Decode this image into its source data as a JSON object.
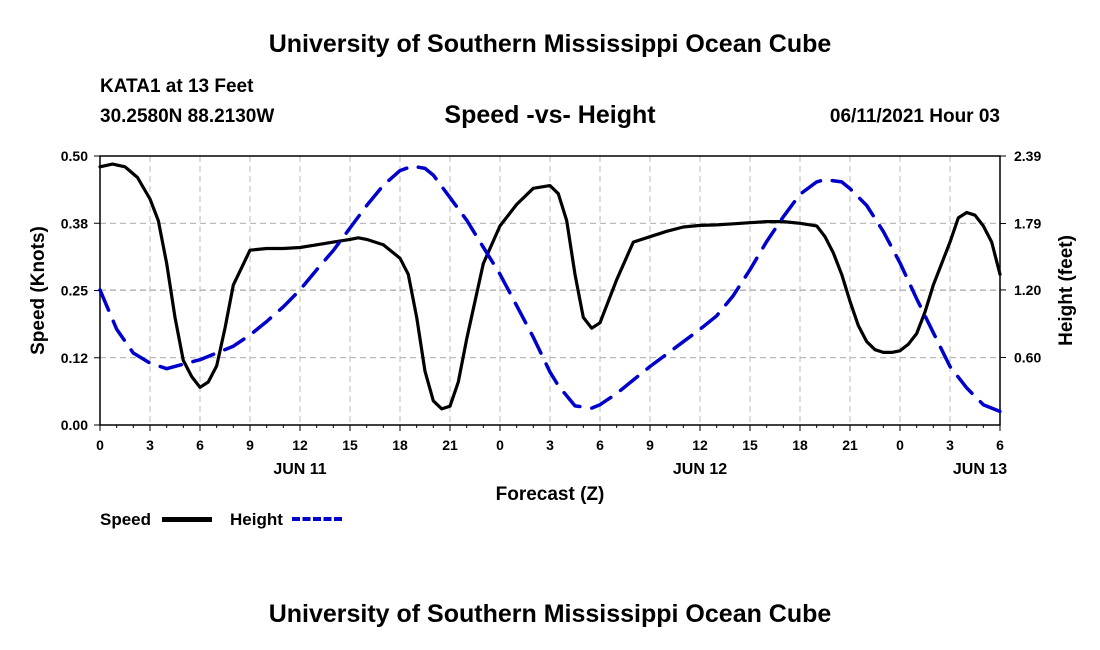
{
  "header": {
    "title": "University of Southern Mississippi Ocean Cube",
    "station": "KATA1 at 13 Feet",
    "coords": "30.2580N  88.2130W",
    "subtitle": "Speed -vs- Height",
    "datetime": "06/11/2021 Hour 03"
  },
  "footer": {
    "title": "University of Southern Mississippi Ocean Cube"
  },
  "legend": {
    "speed_label": "Speed",
    "height_label": "Height"
  },
  "colors": {
    "speed": "#000000",
    "height": "#0000cc",
    "grid": "#bbbbbb"
  },
  "chart_data": {
    "type": "line",
    "title": "Speed -vs- Height",
    "xlabel": "Forecast (Z)",
    "ylabel": "Speed (Knots)",
    "y2label": "Height (feet)",
    "xlim": [
      0,
      54
    ],
    "ylim": [
      0,
      0.5
    ],
    "y2lim": [
      0,
      2.39
    ],
    "x_ticks": [
      0,
      3,
      6,
      9,
      12,
      15,
      18,
      21,
      24,
      27,
      30,
      33,
      36,
      39,
      42,
      45,
      48,
      51,
      54
    ],
    "x_tick_labels": [
      "0",
      "3",
      "6",
      "9",
      "12",
      "15",
      "18",
      "21",
      "0",
      "3",
      "6",
      "9",
      "12",
      "15",
      "18",
      "21",
      "0",
      "3",
      "6"
    ],
    "y_ticks": [
      0,
      0.125,
      0.25,
      0.375,
      0.5
    ],
    "y_tick_labels": [
      "0.00",
      "0.12",
      "0.25",
      "0.38",
      "0.50"
    ],
    "y2_ticks": [
      0.6,
      1.2,
      1.79,
      2.39
    ],
    "y2_tick_labels": [
      "0.60",
      "1.20",
      "1.79",
      "2.39"
    ],
    "day_labels": [
      {
        "x": 12,
        "label": "JUN 11"
      },
      {
        "x": 36,
        "label": "JUN 12"
      },
      {
        "x": 52.8,
        "label": "JUN 13"
      }
    ],
    "series": [
      {
        "name": "Speed",
        "axis": "left",
        "style": "solid",
        "x": [
          0,
          0.75,
          1.5,
          2.25,
          3,
          3.5,
          4,
          4.5,
          5,
          5.5,
          6,
          6.5,
          7,
          7.5,
          8,
          9,
          10,
          11,
          12,
          13,
          14,
          15,
          15.5,
          16,
          17,
          18,
          18.5,
          19,
          19.5,
          20,
          20.5,
          21,
          21.5,
          22,
          23,
          24,
          25,
          26,
          27,
          27.5,
          28,
          28.5,
          29,
          29.5,
          30,
          30.5,
          31,
          32,
          33,
          34,
          35,
          36,
          37,
          38,
          39,
          40,
          41,
          42,
          43,
          43.5,
          44,
          44.5,
          45,
          45.5,
          46,
          46.5,
          47,
          47.5,
          48,
          48.5,
          49,
          49.5,
          50,
          51,
          51.5,
          52,
          52.5,
          53,
          53.5,
          54
        ],
        "values": [
          0.48,
          0.485,
          0.48,
          0.46,
          0.42,
          0.38,
          0.3,
          0.2,
          0.12,
          0.09,
          0.07,
          0.08,
          0.11,
          0.18,
          0.26,
          0.325,
          0.328,
          0.328,
          0.33,
          0.335,
          0.34,
          0.345,
          0.348,
          0.345,
          0.335,
          0.31,
          0.28,
          0.2,
          0.1,
          0.045,
          0.03,
          0.035,
          0.08,
          0.16,
          0.3,
          0.37,
          0.41,
          0.44,
          0.445,
          0.43,
          0.38,
          0.28,
          0.2,
          0.18,
          0.19,
          0.23,
          0.27,
          0.34,
          0.35,
          0.36,
          0.368,
          0.371,
          0.372,
          0.374,
          0.376,
          0.378,
          0.378,
          0.375,
          0.37,
          0.35,
          0.32,
          0.28,
          0.23,
          0.185,
          0.155,
          0.14,
          0.135,
          0.135,
          0.138,
          0.15,
          0.17,
          0.21,
          0.26,
          0.34,
          0.385,
          0.395,
          0.39,
          0.37,
          0.34,
          0.28
        ]
      },
      {
        "name": "Height",
        "axis": "right",
        "style": "dashed",
        "x": [
          0,
          1,
          2,
          3,
          4,
          5,
          6,
          7,
          8,
          9,
          10,
          11,
          12,
          13,
          14,
          15,
          16,
          17,
          18,
          18.75,
          19.5,
          20,
          21,
          22,
          23,
          24,
          25,
          26,
          27,
          27.5,
          28.5,
          29.5,
          30,
          31,
          32,
          33,
          34,
          35,
          36,
          37,
          38,
          39,
          40,
          41,
          42,
          43,
          43.5,
          44.5,
          45,
          46,
          47,
          48,
          49,
          50,
          51,
          52,
          53,
          54
        ],
        "values": [
          1.2,
          0.85,
          0.64,
          0.55,
          0.5,
          0.54,
          0.58,
          0.64,
          0.7,
          0.8,
          0.92,
          1.05,
          1.2,
          1.38,
          1.55,
          1.75,
          1.95,
          2.13,
          2.26,
          2.3,
          2.28,
          2.22,
          2.02,
          1.82,
          1.58,
          1.34,
          1.06,
          0.78,
          0.47,
          0.35,
          0.17,
          0.15,
          0.18,
          0.28,
          0.4,
          0.52,
          0.63,
          0.74,
          0.85,
          0.97,
          1.15,
          1.38,
          1.63,
          1.85,
          2.05,
          2.16,
          2.18,
          2.16,
          2.1,
          1.95,
          1.72,
          1.44,
          1.12,
          0.82,
          0.52,
          0.33,
          0.18,
          0.12
        ]
      }
    ]
  }
}
